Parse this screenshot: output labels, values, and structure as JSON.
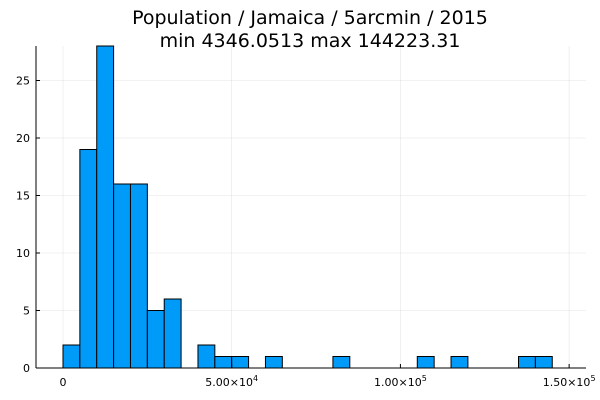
{
  "chart_data": {
    "type": "bar",
    "title": "Population / Jamaica / 5arcmin / 2015",
    "subtitle": "min 4346.0513  max 144223.31",
    "xlabel": "",
    "ylabel": "",
    "grid": true,
    "legend": "none",
    "bar_color": "#009AF9",
    "bin_width": 5000,
    "bin_starts": [
      0,
      5000,
      10000,
      15000,
      20000,
      25000,
      30000,
      35000,
      40000,
      45000,
      50000,
      55000,
      60000,
      65000,
      70000,
      75000,
      80000,
      85000,
      90000,
      95000,
      100000,
      105000,
      110000,
      115000,
      120000,
      125000,
      130000,
      135000,
      140000
    ],
    "counts": [
      2,
      19,
      28,
      16,
      16,
      5,
      6,
      0,
      2,
      1,
      1,
      0,
      1,
      0,
      0,
      0,
      1,
      0,
      0,
      0,
      0,
      1,
      0,
      1,
      0,
      0,
      0,
      1,
      1
    ],
    "xlim": [
      -8000,
      155000
    ],
    "ylim": [
      0,
      28
    ],
    "x_ticks": [
      {
        "value": 0,
        "label": "0",
        "exp": ""
      },
      {
        "value": 50000,
        "label": "5.00×10",
        "exp": "4"
      },
      {
        "value": 100000,
        "label": "1.00×10",
        "exp": "5"
      },
      {
        "value": 150000,
        "label": "1.50×10",
        "exp": "5"
      }
    ],
    "y_ticks": [
      {
        "value": 0,
        "label": "0"
      },
      {
        "value": 5,
        "label": "5"
      },
      {
        "value": 10,
        "label": "10"
      },
      {
        "value": 15,
        "label": "15"
      },
      {
        "value": 20,
        "label": "20"
      },
      {
        "value": 25,
        "label": "25"
      }
    ]
  }
}
